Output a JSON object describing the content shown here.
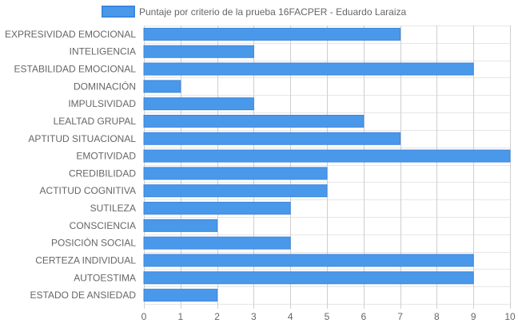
{
  "chart_data": {
    "type": "bar",
    "orientation": "horizontal",
    "categories": [
      "EXPRESIVIDAD EMOCIONAL",
      "INTELIGENCIA",
      "ESTABILIDAD EMOCIONAL",
      "DOMINACIÓN",
      "IMPULSIVIDAD",
      "LEALTAD GRUPAL",
      "APTITUD SITUACIONAL",
      "EMOTIVIDAD",
      "CREDIBILIDAD",
      "ACTITUD COGNITIVA",
      "SUTILEZA",
      "CONSCIENCIA",
      "POSICIÓN SOCIAL",
      "CERTEZA INDIVIDUAL",
      "AUTOESTIMA",
      "ESTADO DE ANSIEDAD"
    ],
    "series": [
      {
        "name": "Puntaje por criterio de la prueba 16FACPER - Eduardo Laraiza",
        "values": [
          7,
          3,
          9,
          1,
          3,
          6,
          7,
          10,
          5,
          5,
          4,
          2,
          4,
          9,
          9,
          2
        ]
      }
    ],
    "xlim": [
      0,
      10
    ],
    "xticks": [
      "0",
      "1",
      "2",
      "3",
      "4",
      "5",
      "6",
      "7",
      "8",
      "9",
      "10"
    ],
    "xlabel": "",
    "ylabel": "",
    "grid": true,
    "legend_position": "top-center",
    "colors": {
      "bar_fill": "#4a98ea",
      "bar_border": "#3d87de",
      "text": "#666666",
      "grid": "#cfcfcf"
    }
  }
}
